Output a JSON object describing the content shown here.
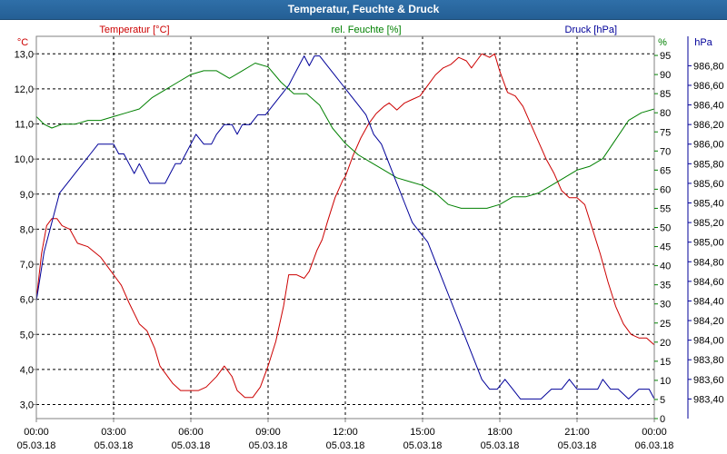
{
  "window": {
    "title": "Temperatur, Feuchte & Druck"
  },
  "colors": {
    "temperature": "#cc0000",
    "humidity": "#008000",
    "pressure": "#000099"
  },
  "chart_data": {
    "type": "line",
    "title": "Temperatur, Feuchte & Druck",
    "xlabel": "",
    "grid": true,
    "x_ticks": [
      {
        "hours": 0,
        "time": "00:00",
        "date": "05.03.18"
      },
      {
        "hours": 3,
        "time": "03:00",
        "date": "05.03.18"
      },
      {
        "hours": 6,
        "time": "06:00",
        "date": "05.03.18"
      },
      {
        "hours": 9,
        "time": "09:00",
        "date": "05.03.18"
      },
      {
        "hours": 12,
        "time": "12:00",
        "date": "05.03.18"
      },
      {
        "hours": 15,
        "time": "15:00",
        "date": "05.03.18"
      },
      {
        "hours": 18,
        "time": "18:00",
        "date": "05.03.18"
      },
      {
        "hours": 21,
        "time": "21:00",
        "date": "05.03.18"
      },
      {
        "hours": 24,
        "time": "00:00",
        "date": "06.03.18"
      }
    ],
    "xlim": [
      0,
      24
    ],
    "axes": {
      "temperature": {
        "label": "Temperatur [°C]",
        "unit": "°C",
        "ylim": [
          2.6,
          13.5
        ],
        "ticks": [
          3.0,
          4.0,
          5.0,
          6.0,
          7.0,
          8.0,
          9.0,
          10.0,
          11.0,
          12.0,
          13.0
        ],
        "tick_labels": [
          "3,0",
          "4,0",
          "5,0",
          "6,0",
          "7,0",
          "8,0",
          "9,0",
          "10,0",
          "11,0",
          "12,0",
          "13,0"
        ]
      },
      "humidity": {
        "label": "rel. Feuchte [%]",
        "unit": "%",
        "ylim": [
          0,
          100
        ],
        "ticks": [
          0,
          5,
          10,
          15,
          20,
          25,
          30,
          35,
          40,
          45,
          50,
          55,
          60,
          65,
          70,
          75,
          80,
          85,
          90,
          95
        ],
        "tick_labels": [
          "0",
          "5",
          "10",
          "15",
          "20",
          "25",
          "30",
          "35",
          "40",
          "45",
          "50",
          "55",
          "60",
          "65",
          "70",
          "75",
          "80",
          "85",
          "90",
          "95"
        ]
      },
      "pressure": {
        "label": "Druck [hPa]",
        "unit": "hPa",
        "ylim": [
          983.2,
          987.1
        ],
        "ticks": [
          983.4,
          983.6,
          983.8,
          984.0,
          984.2,
          984.4,
          984.6,
          984.8,
          985.0,
          985.2,
          985.4,
          985.6,
          985.8,
          986.0,
          986.2,
          986.4,
          986.6,
          986.8
        ],
        "tick_labels": [
          "983,40",
          "983,60",
          "983,80",
          "984,00",
          "984,20",
          "984,40",
          "984,60",
          "984,80",
          "985,00",
          "985,20",
          "985,40",
          "985,60",
          "985,80",
          "986,00",
          "986,20",
          "986,40",
          "986,60",
          "986,80"
        ]
      }
    },
    "series": [
      {
        "name": "Temperatur [°C]",
        "axis": "temperature",
        "color": "#cc0000",
        "points": [
          [
            0,
            6.0
          ],
          [
            0.2,
            7.3
          ],
          [
            0.4,
            8.1
          ],
          [
            0.6,
            8.3
          ],
          [
            0.8,
            8.3
          ],
          [
            1.0,
            8.1
          ],
          [
            1.3,
            8.0
          ],
          [
            1.6,
            7.6
          ],
          [
            2.0,
            7.5
          ],
          [
            2.5,
            7.2
          ],
          [
            3.0,
            6.7
          ],
          [
            3.3,
            6.4
          ],
          [
            3.6,
            5.9
          ],
          [
            4.0,
            5.3
          ],
          [
            4.3,
            5.1
          ],
          [
            4.6,
            4.6
          ],
          [
            4.8,
            4.1
          ],
          [
            5.0,
            3.9
          ],
          [
            5.3,
            3.6
          ],
          [
            5.6,
            3.4
          ],
          [
            6.0,
            3.4
          ],
          [
            6.3,
            3.4
          ],
          [
            6.6,
            3.5
          ],
          [
            7.0,
            3.8
          ],
          [
            7.3,
            4.1
          ],
          [
            7.6,
            3.8
          ],
          [
            7.8,
            3.4
          ],
          [
            8.1,
            3.2
          ],
          [
            8.4,
            3.2
          ],
          [
            8.7,
            3.5
          ],
          [
            9.0,
            4.1
          ],
          [
            9.3,
            4.8
          ],
          [
            9.6,
            5.8
          ],
          [
            9.8,
            6.7
          ],
          [
            10.1,
            6.7
          ],
          [
            10.4,
            6.6
          ],
          [
            10.6,
            6.8
          ],
          [
            10.9,
            7.4
          ],
          [
            11.1,
            7.7
          ],
          [
            11.3,
            8.2
          ],
          [
            11.6,
            8.9
          ],
          [
            11.9,
            9.4
          ],
          [
            12.0,
            9.5
          ],
          [
            12.3,
            10.1
          ],
          [
            12.6,
            10.6
          ],
          [
            12.9,
            11.0
          ],
          [
            13.2,
            11.3
          ],
          [
            13.5,
            11.5
          ],
          [
            13.7,
            11.6
          ],
          [
            14.0,
            11.4
          ],
          [
            14.3,
            11.6
          ],
          [
            14.6,
            11.7
          ],
          [
            14.9,
            11.8
          ],
          [
            15.2,
            12.1
          ],
          [
            15.5,
            12.4
          ],
          [
            15.8,
            12.6
          ],
          [
            16.1,
            12.7
          ],
          [
            16.4,
            12.9
          ],
          [
            16.7,
            12.8
          ],
          [
            16.9,
            12.6
          ],
          [
            17.1,
            12.8
          ],
          [
            17.3,
            13.0
          ],
          [
            17.6,
            12.9
          ],
          [
            17.8,
            13.0
          ],
          [
            18.0,
            12.5
          ],
          [
            18.3,
            11.9
          ],
          [
            18.6,
            11.8
          ],
          [
            18.9,
            11.5
          ],
          [
            19.2,
            11.0
          ],
          [
            19.5,
            10.5
          ],
          [
            19.8,
            10.0
          ],
          [
            20.1,
            9.6
          ],
          [
            20.4,
            9.1
          ],
          [
            20.7,
            8.9
          ],
          [
            21.0,
            8.9
          ],
          [
            21.3,
            8.7
          ],
          [
            21.6,
            8.0
          ],
          [
            21.9,
            7.3
          ],
          [
            22.2,
            6.5
          ],
          [
            22.5,
            5.8
          ],
          [
            22.8,
            5.3
          ],
          [
            23.1,
            5.0
          ],
          [
            23.4,
            4.9
          ],
          [
            23.7,
            4.9
          ],
          [
            24,
            4.7
          ]
        ]
      },
      {
        "name": "rel. Feuchte [%]",
        "axis": "humidity",
        "color": "#008000",
        "points": [
          [
            0,
            79
          ],
          [
            0.3,
            77
          ],
          [
            0.6,
            76
          ],
          [
            1.0,
            77
          ],
          [
            1.5,
            77
          ],
          [
            2.0,
            78
          ],
          [
            2.5,
            78
          ],
          [
            3.0,
            79
          ],
          [
            3.5,
            80
          ],
          [
            4.0,
            81
          ],
          [
            4.5,
            84
          ],
          [
            5.0,
            86
          ],
          [
            5.5,
            88
          ],
          [
            6.0,
            90
          ],
          [
            6.5,
            91
          ],
          [
            7.0,
            91
          ],
          [
            7.5,
            89
          ],
          [
            8.0,
            91
          ],
          [
            8.5,
            93
          ],
          [
            9.0,
            92
          ],
          [
            9.5,
            88
          ],
          [
            10.0,
            85
          ],
          [
            10.5,
            85
          ],
          [
            11.0,
            82
          ],
          [
            11.5,
            76
          ],
          [
            12.0,
            72
          ],
          [
            12.5,
            69
          ],
          [
            13.0,
            67
          ],
          [
            13.5,
            65
          ],
          [
            14.0,
            63
          ],
          [
            14.5,
            62
          ],
          [
            15.0,
            61
          ],
          [
            15.5,
            59
          ],
          [
            16.0,
            56
          ],
          [
            16.5,
            55
          ],
          [
            17.0,
            55
          ],
          [
            17.5,
            55
          ],
          [
            18.0,
            56
          ],
          [
            18.5,
            58
          ],
          [
            19.0,
            58
          ],
          [
            19.5,
            59
          ],
          [
            20.0,
            61
          ],
          [
            20.5,
            63
          ],
          [
            21.0,
            65
          ],
          [
            21.5,
            66
          ],
          [
            22.0,
            68
          ],
          [
            22.5,
            73
          ],
          [
            23.0,
            78
          ],
          [
            23.5,
            80
          ],
          [
            24,
            81
          ]
        ]
      },
      {
        "name": "Druck [hPa]",
        "axis": "pressure",
        "color": "#000099",
        "points": [
          [
            0,
            984.4
          ],
          [
            0.3,
            984.9
          ],
          [
            0.6,
            985.2
          ],
          [
            0.9,
            985.5
          ],
          [
            1.2,
            985.6
          ],
          [
            1.5,
            985.7
          ],
          [
            1.8,
            985.8
          ],
          [
            2.1,
            985.9
          ],
          [
            2.4,
            986.0
          ],
          [
            2.7,
            986.0
          ],
          [
            3.0,
            986.0
          ],
          [
            3.2,
            985.9
          ],
          [
            3.4,
            985.9
          ],
          [
            3.6,
            985.8
          ],
          [
            3.8,
            985.7
          ],
          [
            4.0,
            985.8
          ],
          [
            4.2,
            985.7
          ],
          [
            4.4,
            985.6
          ],
          [
            4.6,
            985.6
          ],
          [
            4.8,
            985.6
          ],
          [
            5.0,
            985.6
          ],
          [
            5.2,
            985.7
          ],
          [
            5.4,
            985.8
          ],
          [
            5.6,
            985.8
          ],
          [
            5.8,
            985.9
          ],
          [
            6.0,
            986.0
          ],
          [
            6.2,
            986.1
          ],
          [
            6.5,
            986.0
          ],
          [
            6.8,
            986.0
          ],
          [
            7.0,
            986.1
          ],
          [
            7.3,
            986.2
          ],
          [
            7.6,
            986.2
          ],
          [
            7.8,
            986.1
          ],
          [
            8.0,
            986.2
          ],
          [
            8.3,
            986.2
          ],
          [
            8.6,
            986.3
          ],
          [
            8.9,
            986.3
          ],
          [
            9.2,
            986.4
          ],
          [
            9.5,
            986.5
          ],
          [
            9.8,
            986.6
          ],
          [
            10.0,
            986.7
          ],
          [
            10.2,
            986.8
          ],
          [
            10.4,
            986.9
          ],
          [
            10.6,
            986.8
          ],
          [
            10.8,
            986.9
          ],
          [
            11.0,
            986.9
          ],
          [
            11.3,
            986.8
          ],
          [
            11.6,
            986.7
          ],
          [
            11.9,
            986.6
          ],
          [
            12.2,
            986.5
          ],
          [
            12.5,
            986.4
          ],
          [
            12.8,
            986.3
          ],
          [
            13.1,
            986.1
          ],
          [
            13.4,
            986.0
          ],
          [
            13.7,
            985.8
          ],
          [
            14.0,
            985.6
          ],
          [
            14.3,
            985.4
          ],
          [
            14.6,
            985.2
          ],
          [
            14.9,
            985.1
          ],
          [
            15.2,
            985.0
          ],
          [
            15.5,
            984.8
          ],
          [
            15.8,
            984.6
          ],
          [
            16.1,
            984.4
          ],
          [
            16.4,
            984.2
          ],
          [
            16.7,
            984.0
          ],
          [
            17.0,
            983.8
          ],
          [
            17.3,
            983.6
          ],
          [
            17.6,
            983.5
          ],
          [
            17.9,
            983.5
          ],
          [
            18.2,
            983.6
          ],
          [
            18.5,
            983.5
          ],
          [
            18.8,
            983.4
          ],
          [
            19.2,
            983.4
          ],
          [
            19.6,
            983.4
          ],
          [
            20.0,
            983.5
          ],
          [
            20.4,
            983.5
          ],
          [
            20.7,
            983.6
          ],
          [
            21.0,
            983.5
          ],
          [
            21.4,
            983.5
          ],
          [
            21.8,
            983.5
          ],
          [
            22.0,
            983.6
          ],
          [
            22.3,
            983.5
          ],
          [
            22.6,
            983.5
          ],
          [
            23.0,
            983.4
          ],
          [
            23.4,
            983.5
          ],
          [
            23.8,
            983.5
          ],
          [
            24,
            983.4
          ]
        ]
      }
    ]
  }
}
